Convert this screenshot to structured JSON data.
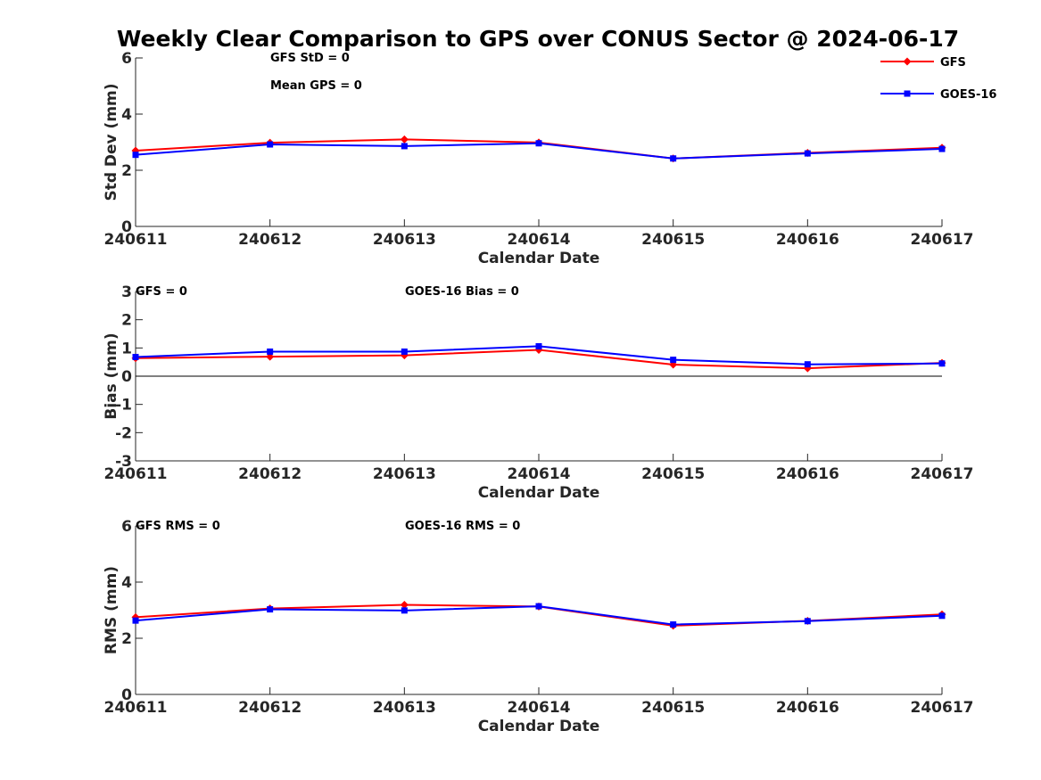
{
  "title": "Weekly Clear Comparison to GPS over CONUS Sector @ 2024-06-17",
  "legend": {
    "placement": "top-right",
    "entries": [
      {
        "label": "GFS",
        "color": "#ff0000",
        "marker": "diamond"
      },
      {
        "label": "GOES-16",
        "color": "#0000ff",
        "marker": "square"
      }
    ]
  },
  "chart_data": [
    {
      "type": "line",
      "xlabel": "Calendar Date",
      "ylabel": "Std Dev (mm)",
      "ylim": [
        0,
        6
      ],
      "yticks": [
        0,
        2,
        4,
        6
      ],
      "categories": [
        "240611",
        "240612",
        "240613",
        "240614",
        "240615",
        "240616",
        "240617"
      ],
      "annotations": [
        "GFS StD = 0",
        "Mean GPS = 0"
      ],
      "zero_line": false,
      "series": [
        {
          "name": "GFS",
          "color": "#ff0000",
          "marker": "diamond",
          "values": [
            2.7,
            2.98,
            3.1,
            2.99,
            2.42,
            2.62,
            2.8
          ]
        },
        {
          "name": "GOES-16",
          "color": "#0000ff",
          "marker": "square",
          "values": [
            2.55,
            2.92,
            2.86,
            2.96,
            2.42,
            2.6,
            2.76
          ]
        }
      ]
    },
    {
      "type": "line",
      "xlabel": "Calendar Date",
      "ylabel": "Bias (mm)",
      "ylim": [
        -3,
        3
      ],
      "yticks": [
        -3,
        -2,
        -1,
        0,
        1,
        2,
        3
      ],
      "categories": [
        "240611",
        "240612",
        "240613",
        "240614",
        "240615",
        "240616",
        "240617"
      ],
      "annotations": [
        "GFS = 0",
        "GOES-16 Bias  = 0"
      ],
      "zero_line": true,
      "series": [
        {
          "name": "GFS",
          "color": "#ff0000",
          "marker": "diamond",
          "values": [
            0.64,
            0.69,
            0.74,
            0.93,
            0.41,
            0.28,
            0.47
          ]
        },
        {
          "name": "GOES-16",
          "color": "#0000ff",
          "marker": "square",
          "values": [
            0.68,
            0.87,
            0.87,
            1.06,
            0.58,
            0.42,
            0.45
          ]
        }
      ]
    },
    {
      "type": "line",
      "xlabel": "Calendar Date",
      "ylabel": "RMS (mm)",
      "ylim": [
        0,
        6
      ],
      "yticks": [
        0,
        2,
        4,
        6
      ],
      "categories": [
        "240611",
        "240612",
        "240613",
        "240614",
        "240615",
        "240616",
        "240617"
      ],
      "annotations": [
        "GFS RMS = 0",
        "GOES-16 RMS = 0"
      ],
      "zero_line": false,
      "series": [
        {
          "name": "GFS",
          "color": "#ff0000",
          "marker": "diamond",
          "values": [
            2.75,
            3.06,
            3.19,
            3.13,
            2.45,
            2.62,
            2.85
          ]
        },
        {
          "name": "GOES-16",
          "color": "#0000ff",
          "marker": "square",
          "values": [
            2.63,
            3.03,
            2.99,
            3.14,
            2.49,
            2.61,
            2.8
          ]
        }
      ]
    }
  ]
}
